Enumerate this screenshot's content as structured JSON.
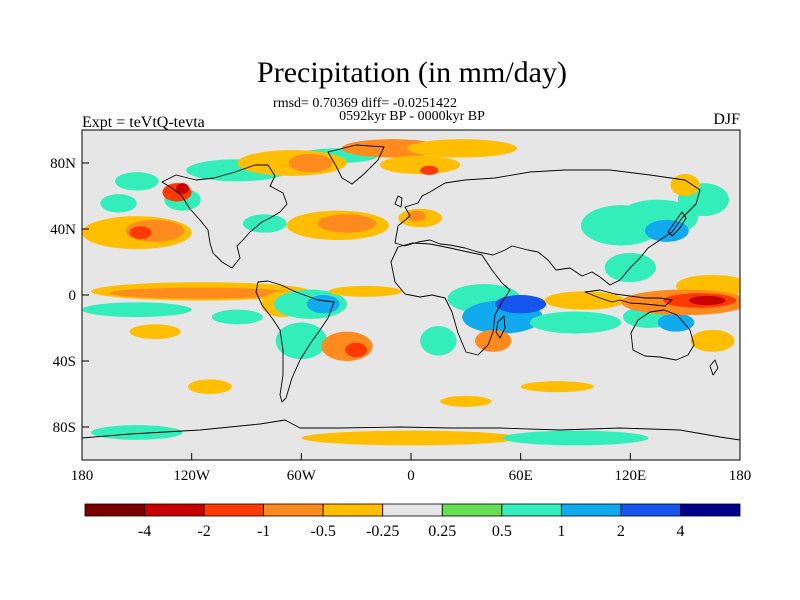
{
  "chart_data": {
    "type": "heatmap",
    "title": "Precipitation (in mm/day)",
    "stats": "rmsd= 0.70369 diff= -0.0251422",
    "period": "0592kyr BP - 0000kyr BP",
    "left_label": "Expt = teVtQ-tevta",
    "right_label": "DJF",
    "x_ticks": [
      "180",
      "120W",
      "60W",
      "0",
      "60E",
      "120E",
      "180"
    ],
    "y_ticks": [
      "80N",
      "40N",
      "0",
      "40S",
      "80S"
    ],
    "lon_range": [
      -180,
      180
    ],
    "lat_range": [
      -90,
      90
    ],
    "levels": [
      -4,
      -2,
      -1,
      -0.5,
      -0.25,
      0.25,
      0.5,
      1,
      2,
      4
    ],
    "level_labels": [
      "-4",
      "-2",
      "-1",
      "-0.5",
      "-0.25",
      "0.25",
      "0.5",
      "1",
      "2",
      "4"
    ],
    "colors": [
      "#7a0000",
      "#c80000",
      "#ff3a00",
      "#ff8a1e",
      "#ffbf00",
      "#e6e6e6",
      "#66dd55",
      "#33eebb",
      "#11aaee",
      "#1655ee",
      "#00008f"
    ],
    "regions": [
      {
        "lon": -95,
        "lat": 68,
        "rx": 28,
        "ry": 6,
        "v": 0.7
      },
      {
        "lon": -40,
        "lat": 76,
        "rx": 22,
        "ry": 4,
        "v": 0.7
      },
      {
        "lon": -150,
        "lat": 62,
        "rx": 12,
        "ry": 5,
        "v": 0.6
      },
      {
        "lon": -125,
        "lat": 52,
        "rx": 10,
        "ry": 6,
        "v": 0.7
      },
      {
        "lon": -128,
        "lat": 56,
        "rx": 8,
        "ry": 5,
        "v": -1.5
      },
      {
        "lon": -125,
        "lat": 58,
        "rx": 3.5,
        "ry": 3,
        "v": -3
      },
      {
        "lon": -160,
        "lat": 50,
        "rx": 10,
        "ry": 5,
        "v": 0.7
      },
      {
        "lon": -150,
        "lat": 34,
        "rx": 30,
        "ry": 9,
        "v": -0.35
      },
      {
        "lon": -140,
        "lat": 35,
        "rx": 16,
        "ry": 6,
        "v": -0.7
      },
      {
        "lon": -148,
        "lat": 34,
        "rx": 6,
        "ry": 3.5,
        "v": -1.5
      },
      {
        "lon": -65,
        "lat": 72,
        "rx": 30,
        "ry": 7,
        "v": -0.35
      },
      {
        "lon": -55,
        "lat": 72,
        "rx": 12,
        "ry": 5,
        "v": -0.7
      },
      {
        "lon": -10,
        "lat": 80,
        "rx": 28,
        "ry": 5,
        "v": -0.7
      },
      {
        "lon": 28,
        "lat": 80,
        "rx": 30,
        "ry": 5,
        "v": -0.35
      },
      {
        "lon": 5,
        "lat": 71,
        "rx": 22,
        "ry": 5,
        "v": -0.35
      },
      {
        "lon": 10,
        "lat": 68,
        "rx": 5,
        "ry": 2.5,
        "v": -1.5
      },
      {
        "lon": -40,
        "lat": 38,
        "rx": 28,
        "ry": 8,
        "v": -0.35
      },
      {
        "lon": -35,
        "lat": 39,
        "rx": 16,
        "ry": 5,
        "v": -0.7
      },
      {
        "lon": 5,
        "lat": 42,
        "rx": 12,
        "ry": 5,
        "v": -0.35
      },
      {
        "lon": 3,
        "lat": 43,
        "rx": 5,
        "ry": 3,
        "v": -0.7
      },
      {
        "lon": -80,
        "lat": 39,
        "rx": 12,
        "ry": 5,
        "v": 0.7
      },
      {
        "lon": 115,
        "lat": 38,
        "rx": 22,
        "ry": 11,
        "v": 0.6
      },
      {
        "lon": 135,
        "lat": 42,
        "rx": 22,
        "ry": 10,
        "v": 0.7
      },
      {
        "lon": 140,
        "lat": 35,
        "rx": 12,
        "ry": 6,
        "v": 1.5
      },
      {
        "lon": 160,
        "lat": 52,
        "rx": 14,
        "ry": 9,
        "v": 0.7
      },
      {
        "lon": 150,
        "lat": 60,
        "rx": 8,
        "ry": 6,
        "v": -0.35
      },
      {
        "lon": 120,
        "lat": 15,
        "rx": 14,
        "ry": 8,
        "v": 0.7
      },
      {
        "lon": 165,
        "lat": 5,
        "rx": 20,
        "ry": 6,
        "v": -0.35
      },
      {
        "lon": -115,
        "lat": 2,
        "rx": 60,
        "ry": 5,
        "v": -0.35
      },
      {
        "lon": -115,
        "lat": 1,
        "rx": 50,
        "ry": 3,
        "v": -0.7
      },
      {
        "lon": -150,
        "lat": -8,
        "rx": 30,
        "ry": 4,
        "v": 0.7
      },
      {
        "lon": -140,
        "lat": -20,
        "rx": 14,
        "ry": 4,
        "v": -0.35
      },
      {
        "lon": -95,
        "lat": -12,
        "rx": 14,
        "ry": 4,
        "v": 0.7
      },
      {
        "lon": -70,
        "lat": -5,
        "rx": 12,
        "ry": 7,
        "v": -0.35
      },
      {
        "lon": -55,
        "lat": -5,
        "rx": 20,
        "ry": 8,
        "v": 0.7
      },
      {
        "lon": -48,
        "lat": -5,
        "rx": 9,
        "ry": 5,
        "v": 1.5
      },
      {
        "lon": -60,
        "lat": -25,
        "rx": 14,
        "ry": 10,
        "v": 0.7
      },
      {
        "lon": -35,
        "lat": -28,
        "rx": 14,
        "ry": 8,
        "v": -0.7
      },
      {
        "lon": -30,
        "lat": -30,
        "rx": 6,
        "ry": 4,
        "v": -1.5
      },
      {
        "lon": -25,
        "lat": 2,
        "rx": 20,
        "ry": 3,
        "v": -0.35
      },
      {
        "lon": 15,
        "lat": -25,
        "rx": 10,
        "ry": 8,
        "v": 0.7
      },
      {
        "lon": 40,
        "lat": -2,
        "rx": 20,
        "ry": 8,
        "v": 0.7
      },
      {
        "lon": 50,
        "lat": -12,
        "rx": 22,
        "ry": 9,
        "v": 1.5
      },
      {
        "lon": 60,
        "lat": -5,
        "rx": 14,
        "ry": 5,
        "v": 3
      },
      {
        "lon": 45,
        "lat": -25,
        "rx": 10,
        "ry": 6,
        "v": -0.7
      },
      {
        "lon": 90,
        "lat": -15,
        "rx": 25,
        "ry": 6,
        "v": 0.7
      },
      {
        "lon": 95,
        "lat": -3,
        "rx": 22,
        "ry": 5,
        "v": -0.35
      },
      {
        "lon": 130,
        "lat": -12,
        "rx": 14,
        "ry": 6,
        "v": 0.7
      },
      {
        "lon": 145,
        "lat": -15,
        "rx": 10,
        "ry": 5,
        "v": 1.5
      },
      {
        "lon": 150,
        "lat": -4,
        "rx": 35,
        "ry": 7,
        "v": -0.7
      },
      {
        "lon": 158,
        "lat": -3,
        "rx": 20,
        "ry": 4,
        "v": -1.5
      },
      {
        "lon": 162,
        "lat": -3,
        "rx": 10,
        "ry": 2.5,
        "v": -3
      },
      {
        "lon": 165,
        "lat": -25,
        "rx": 12,
        "ry": 6,
        "v": -0.35
      },
      {
        "lon": -110,
        "lat": -50,
        "rx": 12,
        "ry": 4,
        "v": -0.35
      },
      {
        "lon": 80,
        "lat": -50,
        "rx": 20,
        "ry": 3,
        "v": -0.35
      },
      {
        "lon": 30,
        "lat": -58,
        "rx": 14,
        "ry": 3,
        "v": -0.35
      },
      {
        "lon": 0,
        "lat": -78,
        "rx": 60,
        "ry": 4,
        "v": -0.35
      },
      {
        "lon": 90,
        "lat": -78,
        "rx": 40,
        "ry": 4,
        "v": 0.7
      },
      {
        "lon": -150,
        "lat": -75,
        "rx": 25,
        "ry": 4,
        "v": 0.7
      }
    ]
  }
}
